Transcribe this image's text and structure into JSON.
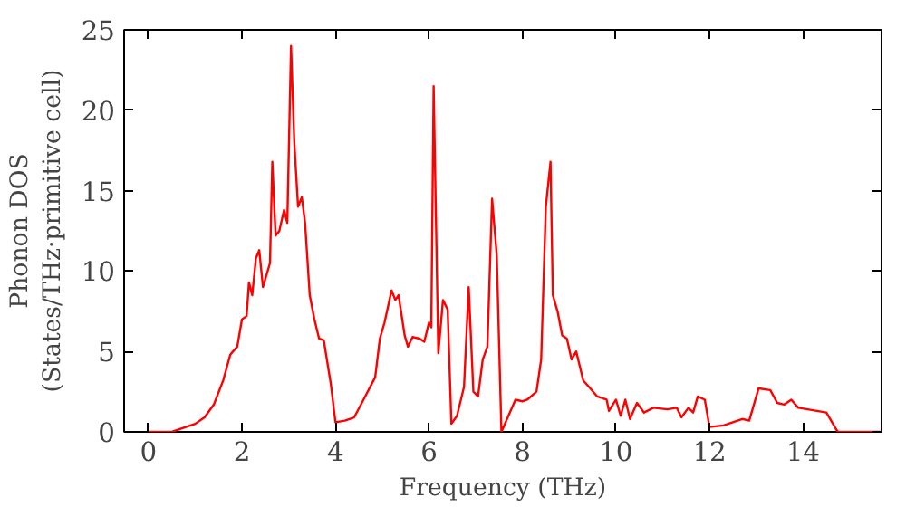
{
  "chart_data": {
    "type": "line",
    "xlabel": "Frequency (THz)",
    "ylabel": "Phonon DOS\n(States/THz·primitive cell)",
    "xlim": [
      -0.52,
      15.68
    ],
    "ylim": [
      0,
      25
    ],
    "xticks": [
      0,
      2,
      4,
      6,
      8,
      10,
      12,
      14
    ],
    "yticks": [
      0,
      5,
      10,
      15,
      20,
      25
    ],
    "grid": false,
    "series": [
      {
        "color": "#ff0000",
        "x": [
          0,
          0.5,
          1.0,
          1.2,
          1.4,
          1.6,
          1.75,
          1.9,
          2.0,
          2.1,
          2.15,
          2.22,
          2.3,
          2.37,
          2.45,
          2.6,
          2.65,
          2.72,
          2.8,
          2.9,
          2.97,
          3.05,
          3.12,
          3.2,
          3.28,
          3.35,
          3.45,
          3.55,
          3.65,
          3.75,
          3.9,
          4.0,
          4.2,
          4.4,
          4.6,
          4.85,
          4.95,
          5.05,
          5.2,
          5.28,
          5.35,
          5.48,
          5.55,
          5.65,
          5.8,
          5.9,
          6.0,
          6.05,
          6.1,
          6.2,
          6.3,
          6.4,
          6.48,
          6.6,
          6.75,
          6.85,
          6.95,
          7.05,
          7.15,
          7.25,
          7.35,
          7.45,
          7.55,
          7.7,
          7.85,
          8.0,
          8.1,
          8.3,
          8.4,
          8.5,
          8.6,
          8.65,
          8.75,
          8.85,
          8.95,
          9.05,
          9.15,
          9.3,
          9.45,
          9.6,
          9.8,
          9.85,
          10.0,
          10.1,
          10.2,
          10.3,
          10.45,
          10.6,
          10.8,
          11.1,
          11.3,
          11.4,
          11.55,
          11.65,
          11.75,
          11.9,
          12.0,
          12.3,
          12.7,
          12.85,
          13.05,
          13.3,
          13.45,
          13.6,
          13.75,
          13.9,
          14.5,
          14.7,
          14.75,
          15.68
        ],
        "values": [
          0,
          0.0,
          0.5,
          0.9,
          1.7,
          3.2,
          4.8,
          5.3,
          7.0,
          7.2,
          9.3,
          8.5,
          10.8,
          11.3,
          9.0,
          10.5,
          16.8,
          12.2,
          12.5,
          13.8,
          13.0,
          24.0,
          18.0,
          14.0,
          14.6,
          13.0,
          8.5,
          7.0,
          5.8,
          5.7,
          3.0,
          0.6,
          0.7,
          0.9,
          2.0,
          3.4,
          5.8,
          6.8,
          8.8,
          8.2,
          8.5,
          6.0,
          5.3,
          5.9,
          5.8,
          5.6,
          6.8,
          6.5,
          21.5,
          4.9,
          8.2,
          7.6,
          0.5,
          1.0,
          2.8,
          9.0,
          2.5,
          2.2,
          4.5,
          5.3,
          14.5,
          11.0,
          0.0,
          1.0,
          2.0,
          1.9,
          2.0,
          2.5,
          4.5,
          14.0,
          16.8,
          8.5,
          7.5,
          6.0,
          5.8,
          4.5,
          5.0,
          3.2,
          2.7,
          2.2,
          2.0,
          1.3,
          2.0,
          1.0,
          2.0,
          0.8,
          1.8,
          1.2,
          1.5,
          1.4,
          1.5,
          0.9,
          1.5,
          1.2,
          2.2,
          2.0,
          0.3,
          0.4,
          0.8,
          0.7,
          2.7,
          2.6,
          1.8,
          1.7,
          2.0,
          1.5,
          1.2,
          0.2,
          0,
          0
        ]
      }
    ]
  }
}
